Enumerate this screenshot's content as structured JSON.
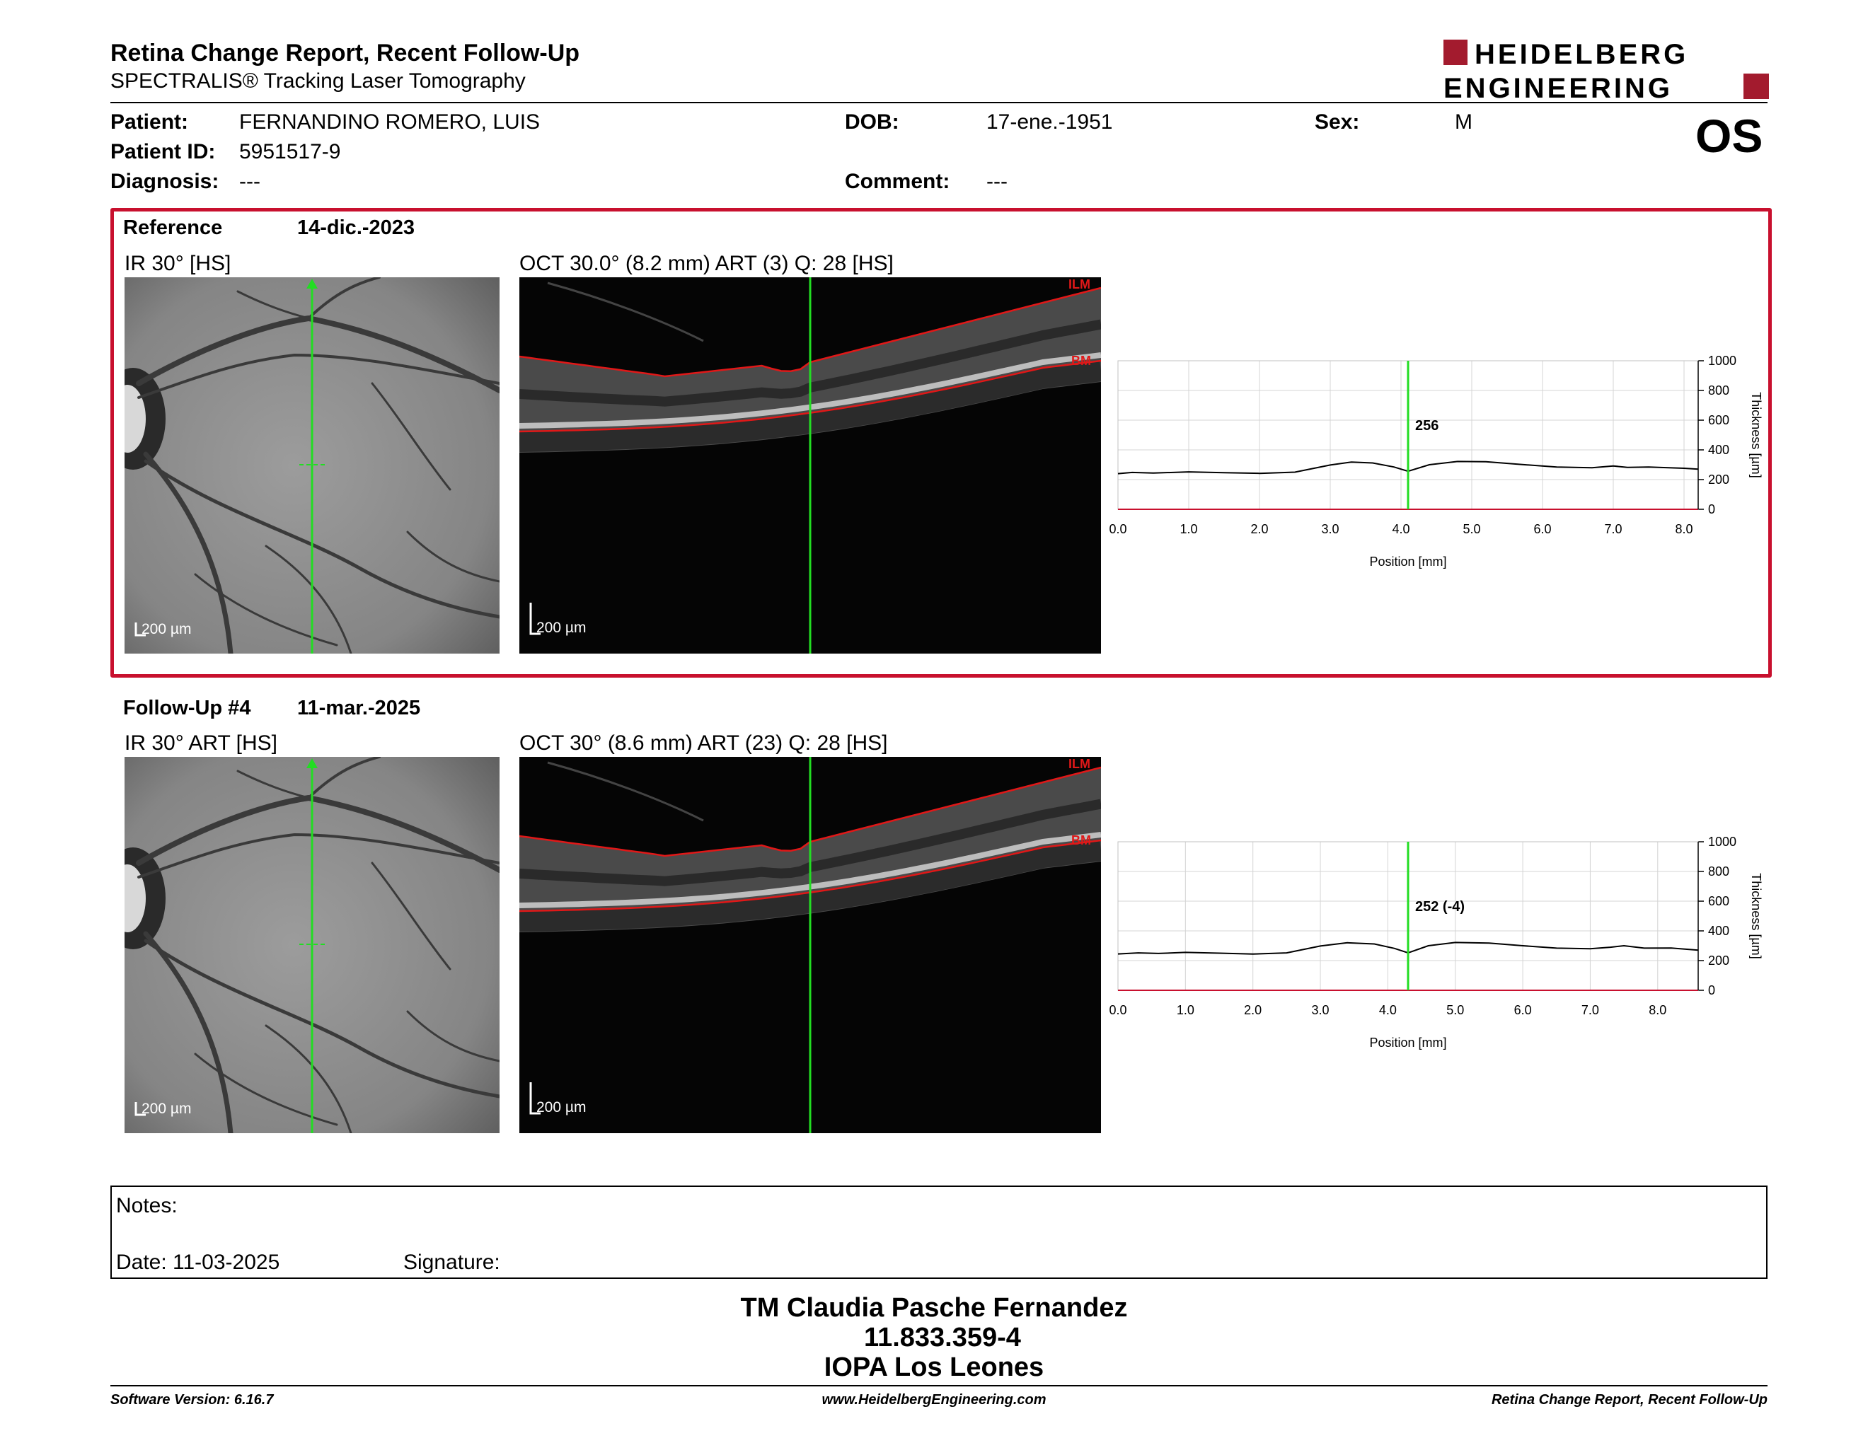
{
  "header": {
    "title": "Retina Change Report, Recent Follow-Up",
    "subtitle": "SPECTRALIS® Tracking Laser Tomography",
    "logo_line1": "HEIDELBERG",
    "logo_line2": "ENGINEERING",
    "eye": "OS"
  },
  "patient": {
    "name_label": "Patient:",
    "name": "FERNANDINO ROMERO, LUIS",
    "id_label": "Patient ID:",
    "id": "5951517-9",
    "diagnosis_label": "Diagnosis:",
    "diagnosis": "---",
    "dob_label": "DOB:",
    "dob": "17-ene.-1951",
    "comment_label": "Comment:",
    "comment": "---",
    "sex_label": "Sex:",
    "sex": "M"
  },
  "reference": {
    "label": "Reference",
    "date": "14-dic.-2023",
    "ir_title": "IR 30° [HS]",
    "oct_title": "OCT 30.0° (8.2 mm) ART (3) Q: 28 [HS]",
    "scale_ir": "200 µm",
    "scale_oct": "200 µm",
    "ilm": "ILM",
    "bm": "BM"
  },
  "followup": {
    "label": "Follow-Up #4",
    "date": "11-mar.-2025",
    "ir_title": "IR 30° ART [HS]",
    "oct_title": "OCT 30° (8.6 mm) ART (23) Q: 28 [HS]",
    "scale_ir": "200 µm",
    "scale_oct": "200 µm",
    "ilm": "ILM",
    "bm": "BM"
  },
  "chart_data": [
    {
      "type": "line",
      "xlabel": "Position [mm]",
      "ylabel": "Thickness [µm]",
      "xlim": [
        0,
        8.2
      ],
      "ylim": [
        0,
        1000
      ],
      "x_ticks": [
        "0.0",
        "1.0",
        "2.0",
        "3.0",
        "4.0",
        "5.0",
        "6.0",
        "7.0",
        "8.0"
      ],
      "y_ticks": [
        "0",
        "200",
        "400",
        "600",
        "800",
        "1000"
      ],
      "marker_x": 4.1,
      "marker_label": "256",
      "series": [
        {
          "x": [
            0.0,
            0.2,
            0.5,
            1.0,
            1.5,
            2.0,
            2.5,
            3.0,
            3.3,
            3.6,
            3.9,
            4.1,
            4.4,
            4.8,
            5.2,
            5.7,
            6.2,
            6.7,
            7.0,
            7.2,
            7.5,
            8.0,
            8.2
          ],
          "y": [
            240,
            248,
            244,
            252,
            246,
            242,
            250,
            298,
            318,
            312,
            285,
            256,
            300,
            322,
            320,
            302,
            285,
            280,
            292,
            282,
            285,
            276,
            270
          ]
        }
      ]
    },
    {
      "type": "line",
      "xlabel": "Position [mm]",
      "ylabel": "Thickness [µm]",
      "xlim": [
        0,
        8.6
      ],
      "ylim": [
        0,
        1000
      ],
      "x_ticks": [
        "0.0",
        "1.0",
        "2.0",
        "3.0",
        "4.0",
        "5.0",
        "6.0",
        "7.0",
        "8.0"
      ],
      "y_ticks": [
        "0",
        "200",
        "400",
        "600",
        "800",
        "1000"
      ],
      "marker_x": 4.3,
      "marker_label": "252 (-4)",
      "series": [
        {
          "x": [
            0.0,
            0.3,
            0.6,
            1.0,
            1.5,
            2.0,
            2.5,
            3.0,
            3.4,
            3.8,
            4.1,
            4.3,
            4.6,
            5.0,
            5.5,
            6.0,
            6.5,
            7.0,
            7.3,
            7.5,
            7.8,
            8.2,
            8.6
          ],
          "y": [
            245,
            252,
            248,
            255,
            250,
            244,
            252,
            298,
            320,
            312,
            282,
            252,
            300,
            322,
            318,
            300,
            284,
            280,
            290,
            300,
            284,
            285,
            270
          ]
        }
      ]
    }
  ],
  "notes": {
    "notes_label": "Notes:",
    "date_label": "Date: 11-03-2025",
    "signature_label": "Signature:"
  },
  "signature_block": {
    "name": "TM Claudia Pasche Fernandez",
    "id": "11.833.359-4",
    "org": "IOPA Los Leones"
  },
  "footer": {
    "software": "Software Version: 6.16.7",
    "website": "www.HeidelbergEngineering.com",
    "report": "Retina Change Report, Recent Follow-Up"
  },
  "colors": {
    "accent": "#c8102e",
    "marker": "#22dd22",
    "layer": "#e01818"
  }
}
